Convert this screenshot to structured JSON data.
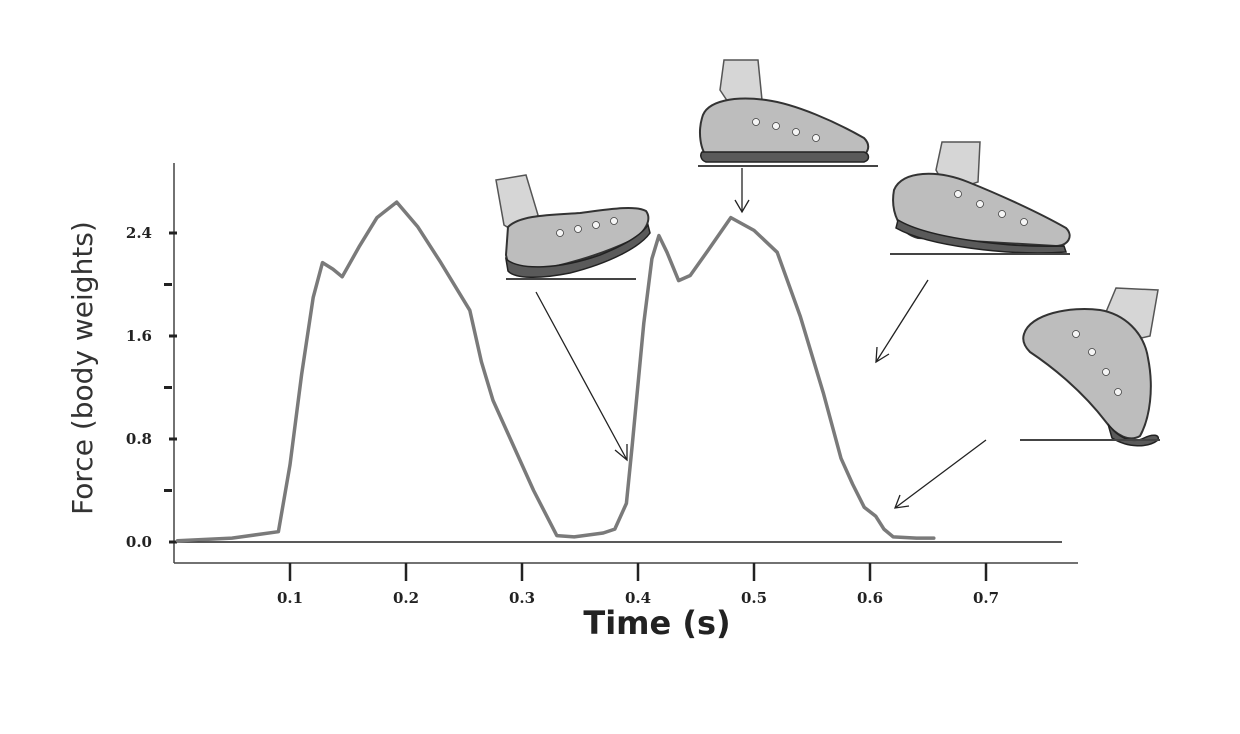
{
  "chart_data": {
    "type": "line",
    "title": "",
    "xlabel": "Time (s)",
    "ylabel": "Force (body weights)",
    "xlim": [
      0.0,
      0.77
    ],
    "ylim": [
      -0.15,
      2.95
    ],
    "x_ticks": [
      {
        "value": 0.1,
        "label": "0.1"
      },
      {
        "value": 0.2,
        "label": "0.2"
      },
      {
        "value": 0.3,
        "label": "0.3"
      },
      {
        "value": 0.4,
        "label": "0.4"
      },
      {
        "value": 0.5,
        "label": "0.5"
      },
      {
        "value": 0.6,
        "label": "0.6"
      },
      {
        "value": 0.7,
        "label": "0.7"
      }
    ],
    "y_ticks_labeled": [
      {
        "value": 0.0,
        "label": "0.0"
      },
      {
        "value": 0.8,
        "label": "0.8"
      },
      {
        "value": 1.6,
        "label": "1.6"
      },
      {
        "value": 2.4,
        "label": "2.4"
      }
    ],
    "y_ticks_minor": [
      0.4,
      1.2,
      2.0
    ],
    "grid": false,
    "legend": "none",
    "series": [
      {
        "color": "#7a7a7a",
        "x": [
          0.003,
          0.05,
          0.09,
          0.1,
          0.11,
          0.12,
          0.128,
          0.137,
          0.145,
          0.16,
          0.175,
          0.192,
          0.21,
          0.23,
          0.255,
          0.265,
          0.275,
          0.29,
          0.31,
          0.33,
          0.345,
          0.37,
          0.38,
          0.39,
          0.395,
          0.405,
          0.412,
          0.418,
          0.425,
          0.435,
          0.445,
          0.46,
          0.48,
          0.5,
          0.52,
          0.54,
          0.56,
          0.575,
          0.585,
          0.595,
          0.605,
          0.612,
          0.62,
          0.64,
          0.655
        ],
        "y": [
          0.01,
          0.03,
          0.08,
          0.6,
          1.3,
          1.9,
          2.17,
          2.12,
          2.06,
          2.3,
          2.52,
          2.64,
          2.45,
          2.17,
          1.8,
          1.4,
          1.1,
          0.8,
          0.4,
          0.05,
          0.04,
          0.07,
          0.1,
          0.3,
          0.75,
          1.7,
          2.2,
          2.38,
          2.25,
          2.03,
          2.07,
          2.26,
          2.52,
          2.42,
          2.25,
          1.75,
          1.15,
          0.65,
          0.45,
          0.27,
          0.2,
          0.1,
          0.04,
          0.03,
          0.03
        ]
      }
    ],
    "annotations": [
      {
        "image": "shoe-heel-strike-icon",
        "target": [
          0.385,
          0.65
        ]
      },
      {
        "image": "shoe-midstance-icon",
        "target": [
          0.48,
          2.56
        ]
      },
      {
        "image": "shoe-heel-off-icon",
        "target": [
          0.575,
          1.4
        ]
      },
      {
        "image": "shoe-toe-off-icon",
        "target": [
          0.605,
          0.25
        ]
      }
    ]
  }
}
